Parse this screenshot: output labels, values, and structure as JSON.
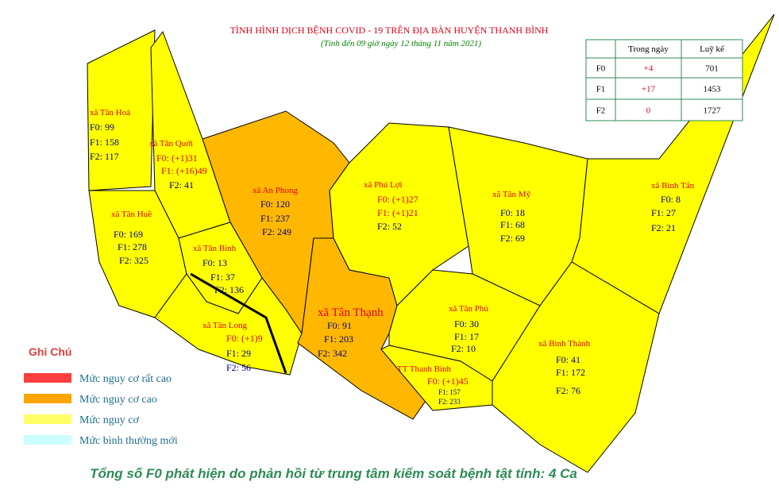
{
  "header": {
    "title": "TÌNH HÌNH DỊCH BỆNH COVID - 19 TRÊN ĐỊA BÀN HUYỆN THANH BÌNH",
    "subtitle": "(Tính đến 09 giờ ngày 12 tháng 11 năm 2021)"
  },
  "table": {
    "headers": [
      "Trong ngày",
      "Luỹ kế"
    ],
    "rows": [
      [
        "F0",
        "+4",
        "701"
      ],
      [
        "F1",
        "+17",
        "1453"
      ],
      [
        "F2",
        "0",
        "1727"
      ]
    ]
  },
  "communes": [
    {
      "name": "xã Tân Hoà",
      "lines": [
        "F0: 99",
        "F1: 158",
        "F2: 117"
      ]
    },
    {
      "name": "xã Tân Quới",
      "lines": [
        "F0: (+1)31",
        "F1: (+16)49",
        "F2: 41"
      ]
    },
    {
      "name": "xã An Phong",
      "lines": [
        "F0: 120",
        "F1: 237",
        "F2: 249"
      ]
    },
    {
      "name": "xã Tân Huề",
      "lines": [
        "F0: 169",
        "F1: 278",
        "F2: 325"
      ]
    },
    {
      "name": "xã Tân Bình",
      "lines": [
        "F0: 13",
        "F1: 37",
        "F2: 136"
      ]
    },
    {
      "name": "xã Tân Long",
      "lines": [
        "F0: (+1)9",
        "F1: 29",
        "F2: 56"
      ]
    },
    {
      "name": "xã Tân Thạnh",
      "lines": [
        "F0: 91",
        "F1: 203",
        "F2: 342"
      ]
    },
    {
      "name": "xã Phú Lợi",
      "lines": [
        "F0: (+1)27",
        "F1: (+1)21",
        "F2: 52"
      ]
    },
    {
      "name": "xã Tân Mỹ",
      "lines": [
        "F0: 18",
        "F1: 68",
        "F2: 69"
      ]
    },
    {
      "name": "xã Bình Tấn",
      "lines": [
        "F0: 8",
        "F1: 27",
        "F2: 21"
      ]
    },
    {
      "name": "xã Tân Phú",
      "lines": [
        "F0: 30",
        "F1: 17",
        "F2: 10"
      ]
    },
    {
      "name": "TT Thanh Bình",
      "lines": [
        "F0: (+1)45",
        "F1: 157",
        "F2: 233"
      ]
    },
    {
      "name": "xã Bình Thành",
      "lines": [
        "F0: 41",
        "F1: 172",
        "F2: 76"
      ]
    }
  ],
  "legend": {
    "title": "Ghi Chú",
    "items": [
      "Mức  nguy cơ rất cao",
      "Mức  nguy cơ cao",
      "Mức  nguy cơ",
      "Mức  bình thường mới"
    ]
  },
  "footer": "Tổng số F0 phát hiện do phản hồi từ trung tâm kiểm soát bệnh tật tỉnh: 4 Ca"
}
